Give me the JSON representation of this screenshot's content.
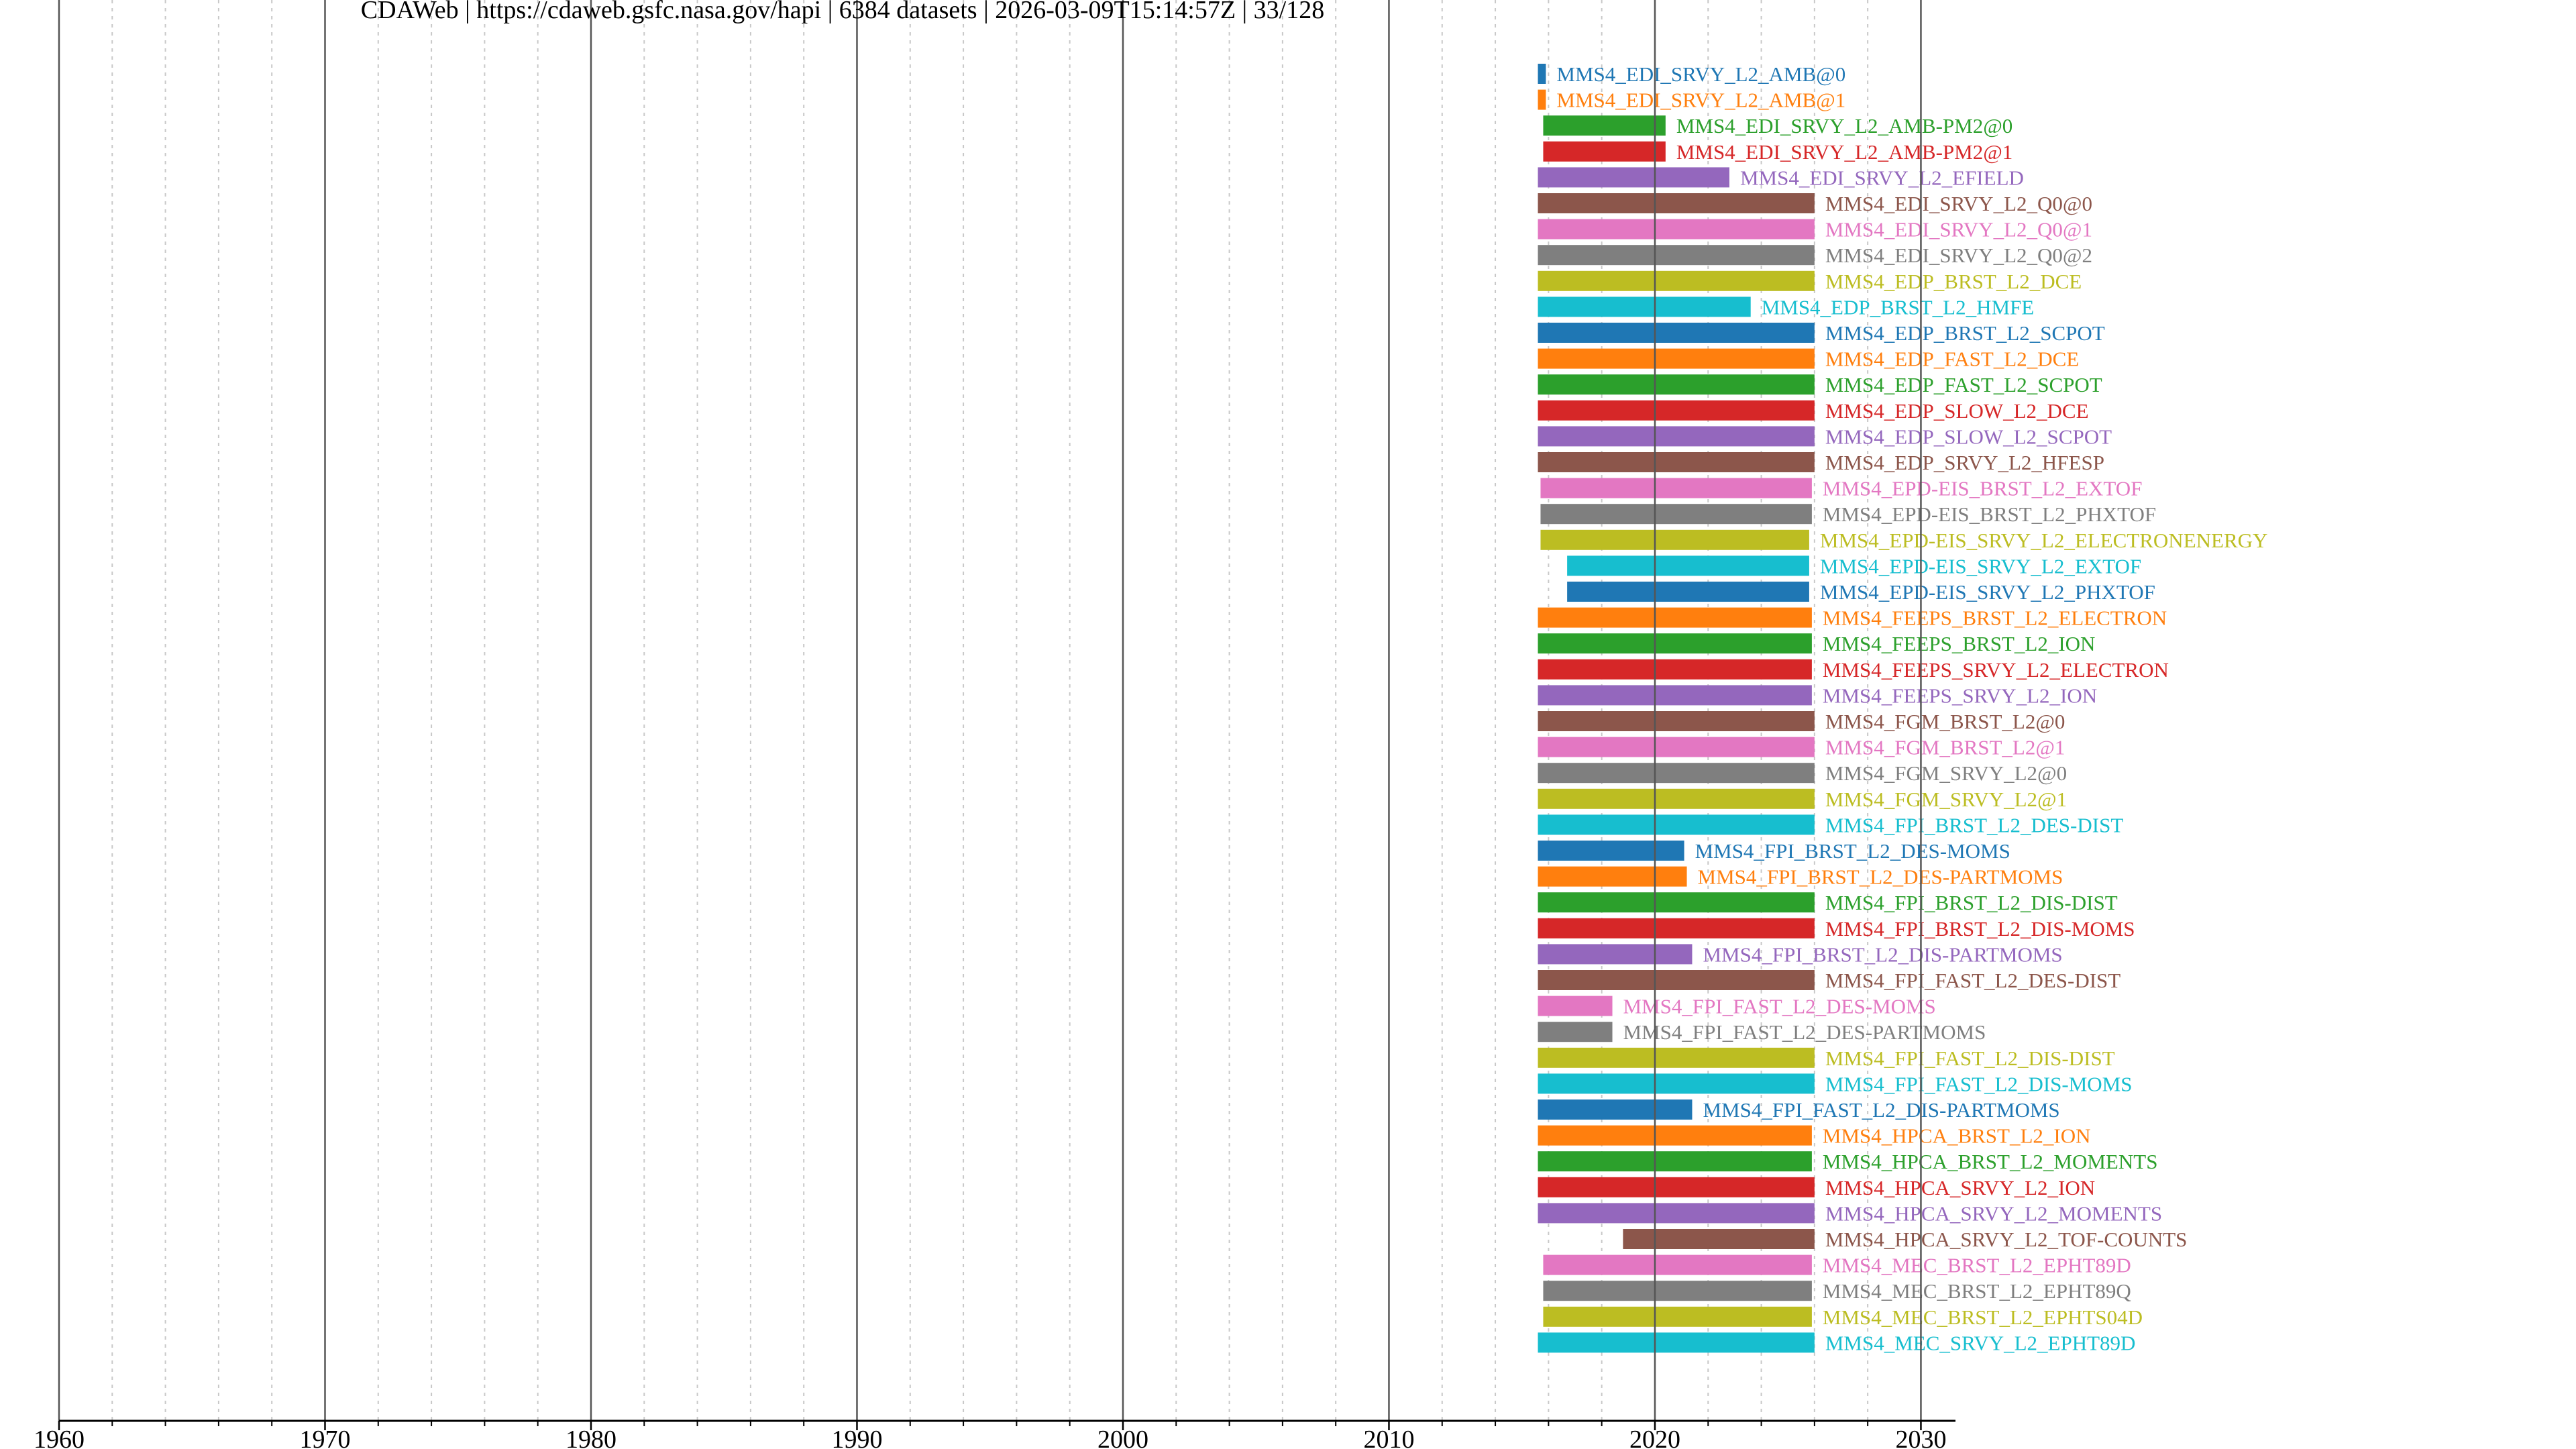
{
  "chart_data": {
    "type": "bar",
    "orientation": "horizontal",
    "title": "CDAWeb | https://cdaweb.gsfc.nasa.gov/hapi | 6384 datasets | 2026-03-09T15:14:57Z | 33/128",
    "xlabel": "",
    "ylabel": "",
    "xlim": [
      1960,
      2031.3
    ],
    "x_ticks": [
      1960,
      1970,
      1980,
      1990,
      2000,
      2010,
      2020,
      2030
    ],
    "x_tick_labels": [
      "1960",
      "1970",
      "1980",
      "1990",
      "2000",
      "2010",
      "2020",
      "2030"
    ],
    "minor_tick_step": 2,
    "grid": true,
    "legend": "none",
    "colors": [
      "#1f77b4",
      "#ff7f0e",
      "#2ca02c",
      "#d62728",
      "#9467bd",
      "#8c564b",
      "#e377c2",
      "#7f7f7f",
      "#bcbd22",
      "#17becf"
    ],
    "grid_major_color": "#555555",
    "grid_minor_color": "#c8c8c8",
    "series": [
      {
        "label": "MMS4_EDI_SRVY_L2_AMB@0",
        "start": 2015.6,
        "end": 2015.9
      },
      {
        "label": "MMS4_EDI_SRVY_L2_AMB@1",
        "start": 2015.6,
        "end": 2015.9
      },
      {
        "label": "MMS4_EDI_SRVY_L2_AMB-PM2@0",
        "start": 2015.8,
        "end": 2020.4
      },
      {
        "label": "MMS4_EDI_SRVY_L2_AMB-PM2@1",
        "start": 2015.8,
        "end": 2020.4
      },
      {
        "label": "MMS4_EDI_SRVY_L2_EFIELD",
        "start": 2015.6,
        "end": 2022.8
      },
      {
        "label": "MMS4_EDI_SRVY_L2_Q0@0",
        "start": 2015.6,
        "end": 2026.0
      },
      {
        "label": "MMS4_EDI_SRVY_L2_Q0@1",
        "start": 2015.6,
        "end": 2026.0
      },
      {
        "label": "MMS4_EDI_SRVY_L2_Q0@2",
        "start": 2015.6,
        "end": 2026.0
      },
      {
        "label": "MMS4_EDP_BRST_L2_DCE",
        "start": 2015.6,
        "end": 2026.0
      },
      {
        "label": "MMS4_EDP_BRST_L2_HMFE",
        "start": 2015.6,
        "end": 2023.6
      },
      {
        "label": "MMS4_EDP_BRST_L2_SCPOT",
        "start": 2015.6,
        "end": 2026.0
      },
      {
        "label": "MMS4_EDP_FAST_L2_DCE",
        "start": 2015.6,
        "end": 2026.0
      },
      {
        "label": "MMS4_EDP_FAST_L2_SCPOT",
        "start": 2015.6,
        "end": 2026.0
      },
      {
        "label": "MMS4_EDP_SLOW_L2_DCE",
        "start": 2015.6,
        "end": 2026.0
      },
      {
        "label": "MMS4_EDP_SLOW_L2_SCPOT",
        "start": 2015.6,
        "end": 2026.0
      },
      {
        "label": "MMS4_EDP_SRVY_L2_HFESP",
        "start": 2015.6,
        "end": 2026.0
      },
      {
        "label": "MMS4_EPD-EIS_BRST_L2_EXTOF",
        "start": 2015.7,
        "end": 2025.9
      },
      {
        "label": "MMS4_EPD-EIS_BRST_L2_PHXTOF",
        "start": 2015.7,
        "end": 2025.9
      },
      {
        "label": "MMS4_EPD-EIS_SRVY_L2_ELECTRONENERGY",
        "start": 2015.7,
        "end": 2025.8
      },
      {
        "label": "MMS4_EPD-EIS_SRVY_L2_EXTOF",
        "start": 2016.7,
        "end": 2025.8
      },
      {
        "label": "MMS4_EPD-EIS_SRVY_L2_PHXTOF",
        "start": 2016.7,
        "end": 2025.8
      },
      {
        "label": "MMS4_FEEPS_BRST_L2_ELECTRON",
        "start": 2015.6,
        "end": 2025.9
      },
      {
        "label": "MMS4_FEEPS_BRST_L2_ION",
        "start": 2015.6,
        "end": 2025.9
      },
      {
        "label": "MMS4_FEEPS_SRVY_L2_ELECTRON",
        "start": 2015.6,
        "end": 2025.9
      },
      {
        "label": "MMS4_FEEPS_SRVY_L2_ION",
        "start": 2015.6,
        "end": 2025.9
      },
      {
        "label": "MMS4_FGM_BRST_L2@0",
        "start": 2015.6,
        "end": 2026.0
      },
      {
        "label": "MMS4_FGM_BRST_L2@1",
        "start": 2015.6,
        "end": 2026.0
      },
      {
        "label": "MMS4_FGM_SRVY_L2@0",
        "start": 2015.6,
        "end": 2026.0
      },
      {
        "label": "MMS4_FGM_SRVY_L2@1",
        "start": 2015.6,
        "end": 2026.0
      },
      {
        "label": "MMS4_FPI_BRST_L2_DES-DIST",
        "start": 2015.6,
        "end": 2026.0
      },
      {
        "label": "MMS4_FPI_BRST_L2_DES-MOMS",
        "start": 2015.6,
        "end": 2021.1
      },
      {
        "label": "MMS4_FPI_BRST_L2_DES-PARTMOMS",
        "start": 2015.6,
        "end": 2021.2
      },
      {
        "label": "MMS4_FPI_BRST_L2_DIS-DIST",
        "start": 2015.6,
        "end": 2026.0
      },
      {
        "label": "MMS4_FPI_BRST_L2_DIS-MOMS",
        "start": 2015.6,
        "end": 2026.0
      },
      {
        "label": "MMS4_FPI_BRST_L2_DIS-PARTMOMS",
        "start": 2015.6,
        "end": 2021.4
      },
      {
        "label": "MMS4_FPI_FAST_L2_DES-DIST",
        "start": 2015.6,
        "end": 2026.0
      },
      {
        "label": "MMS4_FPI_FAST_L2_DES-MOMS",
        "start": 2015.6,
        "end": 2018.4
      },
      {
        "label": "MMS4_FPI_FAST_L2_DES-PARTMOMS",
        "start": 2015.6,
        "end": 2018.4
      },
      {
        "label": "MMS4_FPI_FAST_L2_DIS-DIST",
        "start": 2015.6,
        "end": 2026.0
      },
      {
        "label": "MMS4_FPI_FAST_L2_DIS-MOMS",
        "start": 2015.6,
        "end": 2026.0
      },
      {
        "label": "MMS4_FPI_FAST_L2_DIS-PARTMOMS",
        "start": 2015.6,
        "end": 2021.4
      },
      {
        "label": "MMS4_HPCA_BRST_L2_ION",
        "start": 2015.6,
        "end": 2025.9
      },
      {
        "label": "MMS4_HPCA_BRST_L2_MOMENTS",
        "start": 2015.6,
        "end": 2025.9
      },
      {
        "label": "MMS4_HPCA_SRVY_L2_ION",
        "start": 2015.6,
        "end": 2026.0
      },
      {
        "label": "MMS4_HPCA_SRVY_L2_MOMENTS",
        "start": 2015.6,
        "end": 2026.0
      },
      {
        "label": "MMS4_HPCA_SRVY_L2_TOF-COUNTS",
        "start": 2018.8,
        "end": 2026.0
      },
      {
        "label": "MMS4_MEC_BRST_L2_EPHT89D",
        "start": 2015.8,
        "end": 2025.9
      },
      {
        "label": "MMS4_MEC_BRST_L2_EPHT89Q",
        "start": 2015.8,
        "end": 2025.9
      },
      {
        "label": "MMS4_MEC_BRST_L2_EPHTS04D",
        "start": 2015.8,
        "end": 2025.9
      },
      {
        "label": "MMS4_MEC_SRVY_L2_EPHT89D",
        "start": 2015.6,
        "end": 2026.0
      }
    ]
  }
}
